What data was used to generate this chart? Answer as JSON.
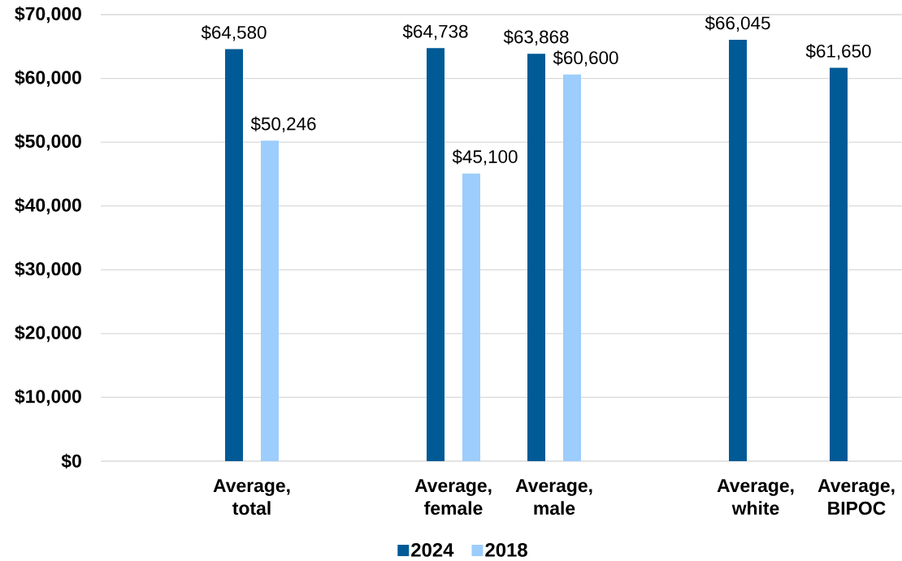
{
  "chart_data": {
    "type": "bar",
    "categories": [
      null,
      "Average, total",
      null,
      "Average, female",
      "Average, male",
      null,
      "Average, white",
      "Average, BIPOC"
    ],
    "series": [
      {
        "name": "2024",
        "color": "#005a96",
        "values": [
          null,
          64580,
          null,
          64738,
          63868,
          null,
          66045,
          61650
        ],
        "value_labels": [
          null,
          "$64,580",
          null,
          "$64,738",
          "$63,868",
          null,
          "$66,045",
          "$61,650"
        ]
      },
      {
        "name": "2018",
        "color": "#9ccdfc",
        "values": [
          null,
          50246,
          null,
          45100,
          60600,
          null,
          null,
          null
        ],
        "value_labels": [
          null,
          "$50,246",
          null,
          "$45,100",
          "$60,600",
          null,
          null,
          null
        ]
      }
    ],
    "ylim": [
      0,
      70000
    ],
    "yticks": [
      {
        "value": 0,
        "label": "$0"
      },
      {
        "value": 10000,
        "label": "$10,000"
      },
      {
        "value": 20000,
        "label": "$20,000"
      },
      {
        "value": 30000,
        "label": "$30,000"
      },
      {
        "value": 40000,
        "label": "$40,000"
      },
      {
        "value": 50000,
        "label": "$50,000"
      },
      {
        "value": 60000,
        "label": "$60,000"
      },
      {
        "value": 70000,
        "label": "$70,000"
      }
    ],
    "grid": "y",
    "legend": "bottom"
  }
}
